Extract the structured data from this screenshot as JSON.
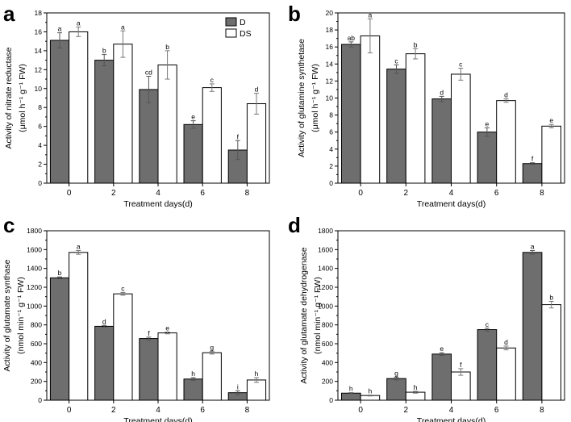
{
  "colors": {
    "D": "#6e6e6e",
    "DS": "#ffffff",
    "stroke": "#000000"
  },
  "legend": {
    "items": [
      "D",
      "DS"
    ]
  },
  "chart_data": [
    {
      "panel": "a",
      "type": "bar",
      "categories": [
        "0",
        "2",
        "4",
        "6",
        "8"
      ],
      "xlabel": "Treatment days(d)",
      "ylabel": "Activity of nitrate reductase",
      "ylabel2": "(μmol h⁻¹ g⁻¹ FW)",
      "ylim": [
        0,
        18
      ],
      "yticks": [
        "0",
        "2",
        "4",
        "6",
        "8",
        "10",
        "12",
        "14",
        "16",
        "18"
      ],
      "series": [
        {
          "name": "D",
          "values": [
            15.1,
            13.0,
            9.9,
            6.2,
            3.5
          ],
          "errors": [
            0.8,
            0.6,
            1.4,
            0.4,
            1.0
          ],
          "labels": [
            "a",
            "b",
            "cd",
            "e",
            "f"
          ]
        },
        {
          "name": "DS",
          "values": [
            16.0,
            14.7,
            12.5,
            10.1,
            8.4
          ],
          "errors": [
            0.5,
            1.4,
            1.5,
            0.4,
            1.1
          ],
          "labels": [
            "a",
            "a",
            "b",
            "c",
            "d"
          ]
        }
      ]
    },
    {
      "panel": "b",
      "type": "bar",
      "categories": [
        "0",
        "2",
        "4",
        "6",
        "8"
      ],
      "xlabel": "Treatment days(d)",
      "ylabel": "Activity of glutamine synthetase",
      "ylabel2": "(μmol h⁻¹ g⁻¹ FW)",
      "ylim": [
        0,
        20
      ],
      "yticks": [
        "0",
        "2",
        "4",
        "6",
        "8",
        "10",
        "12",
        "14",
        "16",
        "18",
        "20"
      ],
      "series": [
        {
          "name": "D",
          "values": [
            16.3,
            13.4,
            9.9,
            6.0,
            2.3
          ],
          "errors": [
            0.3,
            0.5,
            0.3,
            0.5,
            0.1
          ],
          "labels": [
            "ab",
            "c",
            "d",
            "e",
            "f"
          ]
        },
        {
          "name": "DS",
          "values": [
            17.3,
            15.2,
            12.8,
            9.7,
            6.7
          ],
          "errors": [
            2.0,
            0.6,
            0.7,
            0.2,
            0.2
          ],
          "labels": [
            "a",
            "b",
            "c",
            "d",
            "e"
          ]
        }
      ]
    },
    {
      "panel": "c",
      "type": "bar",
      "categories": [
        "0",
        "2",
        "4",
        "6",
        "8"
      ],
      "xlabel": "Treatment days(d)",
      "ylabel": "Activity of glutamate synthase",
      "ylabel2": "(nmol min⁻¹ g⁻¹ FW)",
      "ylim": [
        0,
        1800
      ],
      "yticks": [
        "0",
        "200",
        "400",
        "600",
        "800",
        "1000",
        "1200",
        "1400",
        "1600",
        "1800"
      ],
      "series": [
        {
          "name": "D",
          "values": [
            1300,
            785,
            655,
            225,
            80
          ],
          "errors": [
            10,
            10,
            15,
            15,
            20
          ],
          "labels": [
            "b",
            "d",
            "f",
            "h",
            "i"
          ]
        },
        {
          "name": "DS",
          "values": [
            1570,
            1130,
            715,
            505,
            215
          ],
          "errors": [
            20,
            15,
            10,
            15,
            25
          ],
          "labels": [
            "a",
            "c",
            "e",
            "g",
            "h"
          ]
        }
      ]
    },
    {
      "panel": "d",
      "type": "bar",
      "categories": [
        "0",
        "2",
        "4",
        "6",
        "8"
      ],
      "xlabel": "Treatment days(d)",
      "ylabel": "Activity of glutamate dehydrogenase",
      "ylabel2": "(nmol min⁻¹ g⁻¹ FW)",
      "ylim": [
        0,
        1800
      ],
      "yticks": [
        "0",
        "200",
        "400",
        "600",
        "800",
        "1000",
        "1200",
        "1400",
        "1600",
        "1800"
      ],
      "series": [
        {
          "name": "D",
          "values": [
            75,
            230,
            490,
            750,
            1570
          ],
          "errors": [
            5,
            15,
            15,
            15,
            20
          ],
          "labels": [
            "h",
            "g",
            "e",
            "c",
            "a"
          ]
        },
        {
          "name": "DS",
          "values": [
            50,
            85,
            300,
            555,
            1015
          ],
          "errors": [
            5,
            10,
            35,
            20,
            35
          ],
          "labels": [
            "h",
            "h",
            "f",
            "d",
            "b"
          ]
        }
      ]
    }
  ]
}
